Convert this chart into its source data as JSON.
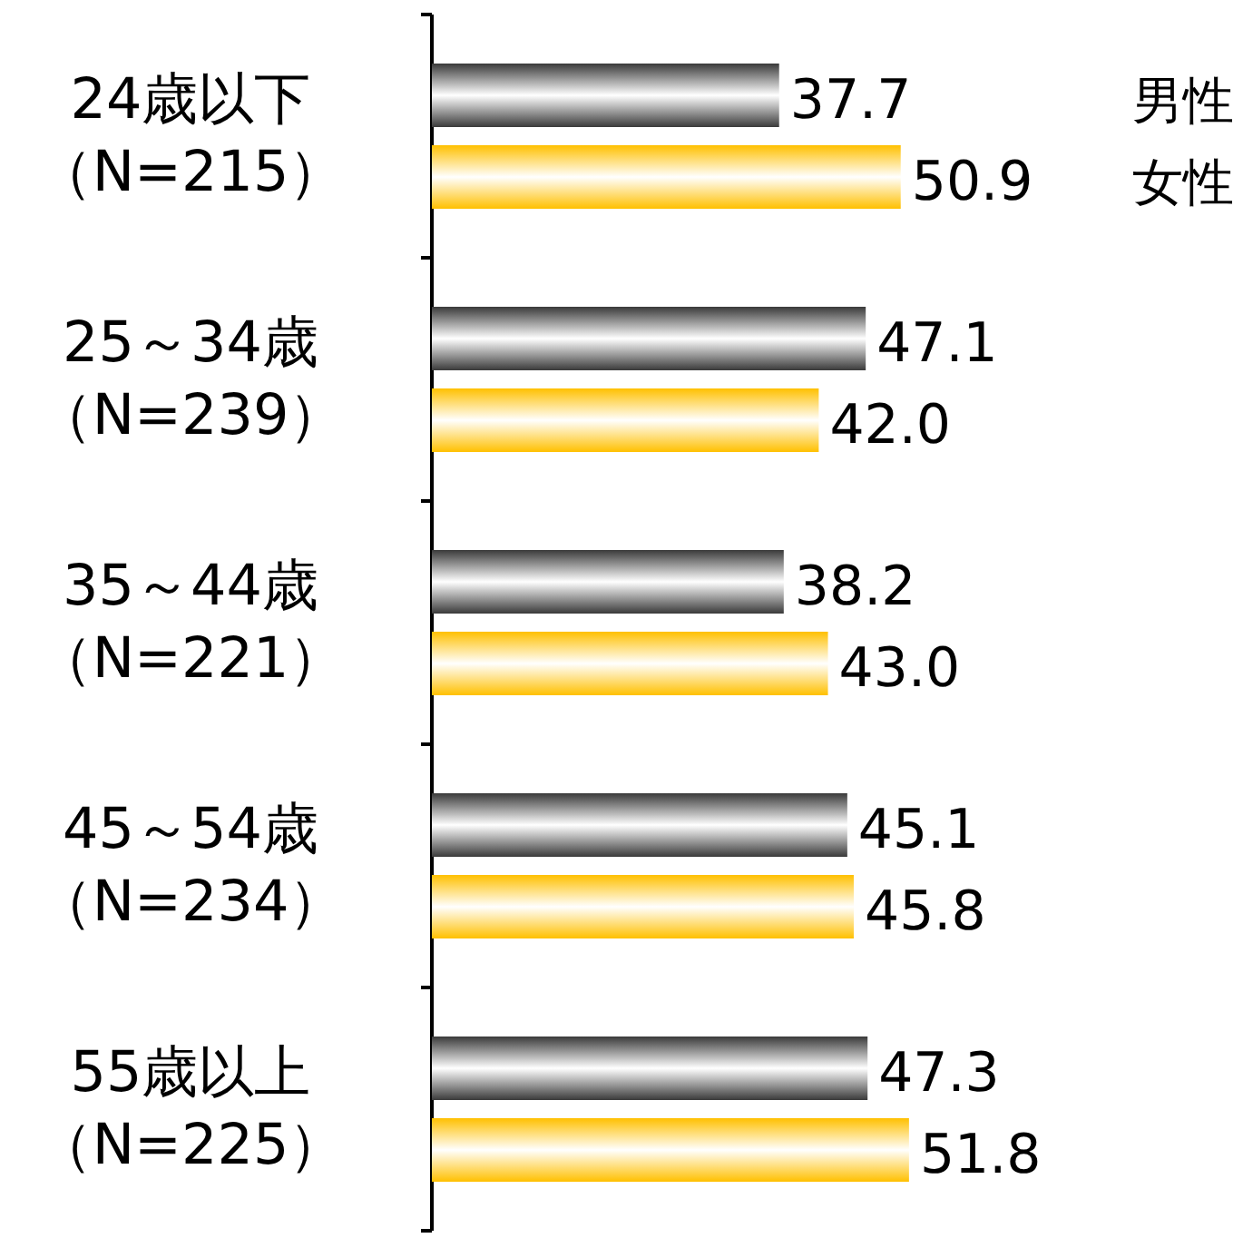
{
  "chart_data": {
    "type": "bar",
    "orientation": "horizontal",
    "data_labels": true,
    "legend": "top right",
    "categories": [
      "24歳以下（N=215）",
      "25～34歳（N=239）",
      "35～44歳（N=221）",
      "45～54歳（N=234）",
      "55歳以上（N=225）"
    ],
    "series": [
      {
        "name": "男性",
        "color": "#3a3a3a",
        "values": [
          37.7,
          47.1,
          38.2,
          45.1,
          47.3
        ],
        "value_labels": [
          "37.7",
          "47.1",
          "38.2",
          "45.1",
          "47.3"
        ]
      },
      {
        "name": "女性",
        "color": "#ffc000",
        "values": [
          50.9,
          42.0,
          43.0,
          45.8,
          51.8
        ],
        "value_labels": [
          "50.9",
          "42.0",
          "43.0",
          "45.8",
          "51.8"
        ]
      }
    ]
  }
}
